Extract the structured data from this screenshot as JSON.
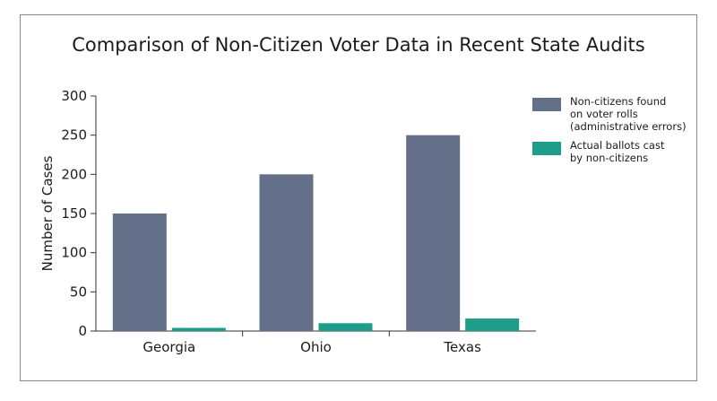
{
  "chart_data": {
    "type": "bar",
    "title": "Comparison of Non-Citizen Voter Data in Recent State Audits",
    "ylabel": "Number of Cases",
    "xlabel": "",
    "categories": [
      "Georgia",
      "Ohio",
      "Texas"
    ],
    "ylim": [
      0,
      300
    ],
    "yticks": [
      0,
      50,
      100,
      150,
      200,
      250,
      300
    ],
    "legend_position": "top-right",
    "grid": false,
    "series": [
      {
        "name": "Non-citizens found on voter rolls (administrative errors)",
        "legend_lines": [
          "Non-citizens found",
          "on voter rolls",
          "(administrative errors)"
        ],
        "color": "#647089",
        "values": [
          150,
          200,
          250
        ]
      },
      {
        "name": "Actual ballots cast by non-citizens",
        "legend_lines": [
          "Actual ballots cast",
          "by non-citizens"
        ],
        "color": "#1e9d8b",
        "values": [
          4,
          10,
          16
        ]
      }
    ]
  }
}
